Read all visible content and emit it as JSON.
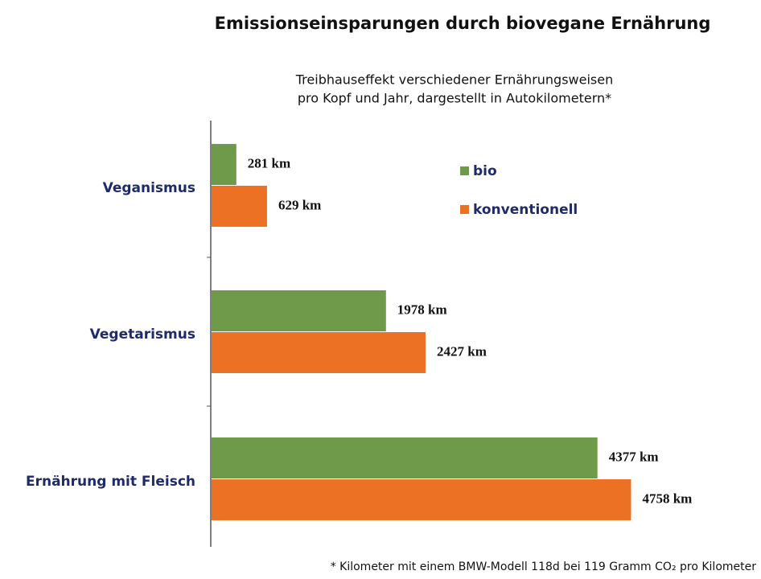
{
  "chart_data": {
    "type": "bar",
    "orientation": "horizontal",
    "title": "Emissionseinsparungen durch biovegane Ernährung",
    "subtitle": [
      "Treibhauseffekt verschiedener Ernährungsweisen",
      "pro Kopf und Jahr, dargestellt in Autokilometern*"
    ],
    "categories": [
      "Veganismus",
      "Vegetarismus",
      "Ernährung mit Fleisch"
    ],
    "series": [
      {
        "name": "bio",
        "color": "#6e9a4a",
        "values": [
          281,
          1978,
          4377
        ],
        "value_labels": [
          "281 km",
          "1978 km",
          "4377 km"
        ]
      },
      {
        "name": "konventionell",
        "color": "#ec7125",
        "values": [
          629,
          2427,
          4758
        ],
        "value_labels": [
          "629 km",
          "2427 km",
          "4758 km"
        ]
      }
    ],
    "xlim": [
      0,
      5000
    ],
    "footnote": "* Kilometer mit einem BMW-Modell 118d bei 119 Gramm CO₂ pro Kilometer"
  }
}
